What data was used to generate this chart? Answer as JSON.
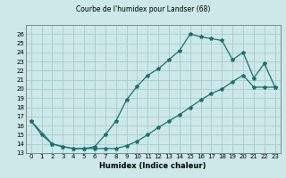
{
  "title": "Courbe de l'humidex pour Landser (68)",
  "xlabel": "Humidex (Indice chaleur)",
  "background_color": "#cce8e8",
  "grid_color": "#aacccc",
  "line_color": "#1a7070",
  "xlim": [
    -0.5,
    23.5
  ],
  "ylim": [
    13,
    27
  ],
  "xticks": [
    0,
    1,
    2,
    3,
    4,
    5,
    6,
    7,
    8,
    9,
    10,
    11,
    12,
    13,
    14,
    15,
    16,
    17,
    18,
    19,
    20,
    21,
    22,
    23
  ],
  "yticks": [
    13,
    14,
    15,
    16,
    17,
    18,
    19,
    20,
    21,
    22,
    23,
    24,
    25,
    26
  ],
  "upper_x": [
    0,
    1,
    2,
    3,
    4,
    5,
    6,
    7,
    8,
    9,
    10,
    11,
    12,
    13,
    14,
    15,
    16,
    17,
    18,
    19,
    20,
    21,
    22,
    23
  ],
  "upper_y": [
    16.5,
    15.0,
    14.0,
    13.7,
    13.5,
    13.5,
    13.7,
    15.0,
    16.5,
    18.8,
    20.3,
    21.5,
    22.2,
    23.2,
    24.2,
    26.0,
    25.7,
    25.5,
    25.3,
    23.2,
    24.0,
    21.2,
    22.8,
    20.2
  ],
  "lower_x": [
    0,
    2,
    3,
    4,
    5,
    6,
    7,
    8,
    9,
    10,
    11,
    12,
    13,
    14,
    15,
    16,
    17,
    18,
    19,
    20,
    21,
    22,
    23
  ],
  "lower_y": [
    16.5,
    14.0,
    13.7,
    13.5,
    13.5,
    13.5,
    13.5,
    13.5,
    13.8,
    14.3,
    15.0,
    15.8,
    16.5,
    17.2,
    18.0,
    18.8,
    19.5,
    20.0,
    20.8,
    21.5,
    20.2,
    20.2,
    20.2
  ]
}
